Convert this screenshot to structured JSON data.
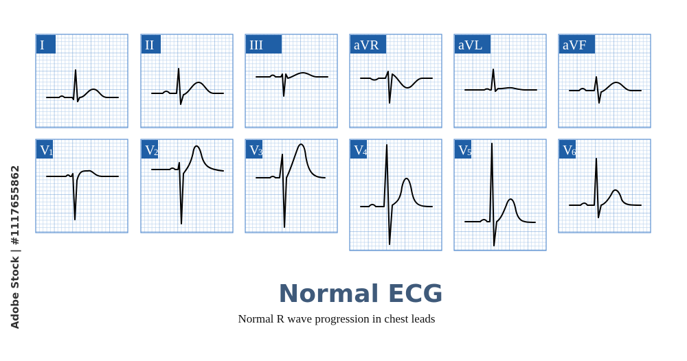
{
  "leads": [
    {
      "label": "I"
    },
    {
      "label": "II"
    },
    {
      "label": "III"
    },
    {
      "label": "aVR"
    },
    {
      "label": "aVL"
    },
    {
      "label": "aVF"
    },
    {
      "label": "V",
      "subscript": "1"
    },
    {
      "label": "V",
      "subscript": "2"
    },
    {
      "label": "V",
      "subscript": "3"
    },
    {
      "label": "V",
      "subscript": "4"
    },
    {
      "label": "V",
      "subscript": "5"
    },
    {
      "label": "V",
      "subscript": "6"
    }
  ],
  "title": "Normal ECG",
  "subtitle": "Normal R wave progression in chest leads",
  "watermark": "Adobe Stock | #1117655862"
}
